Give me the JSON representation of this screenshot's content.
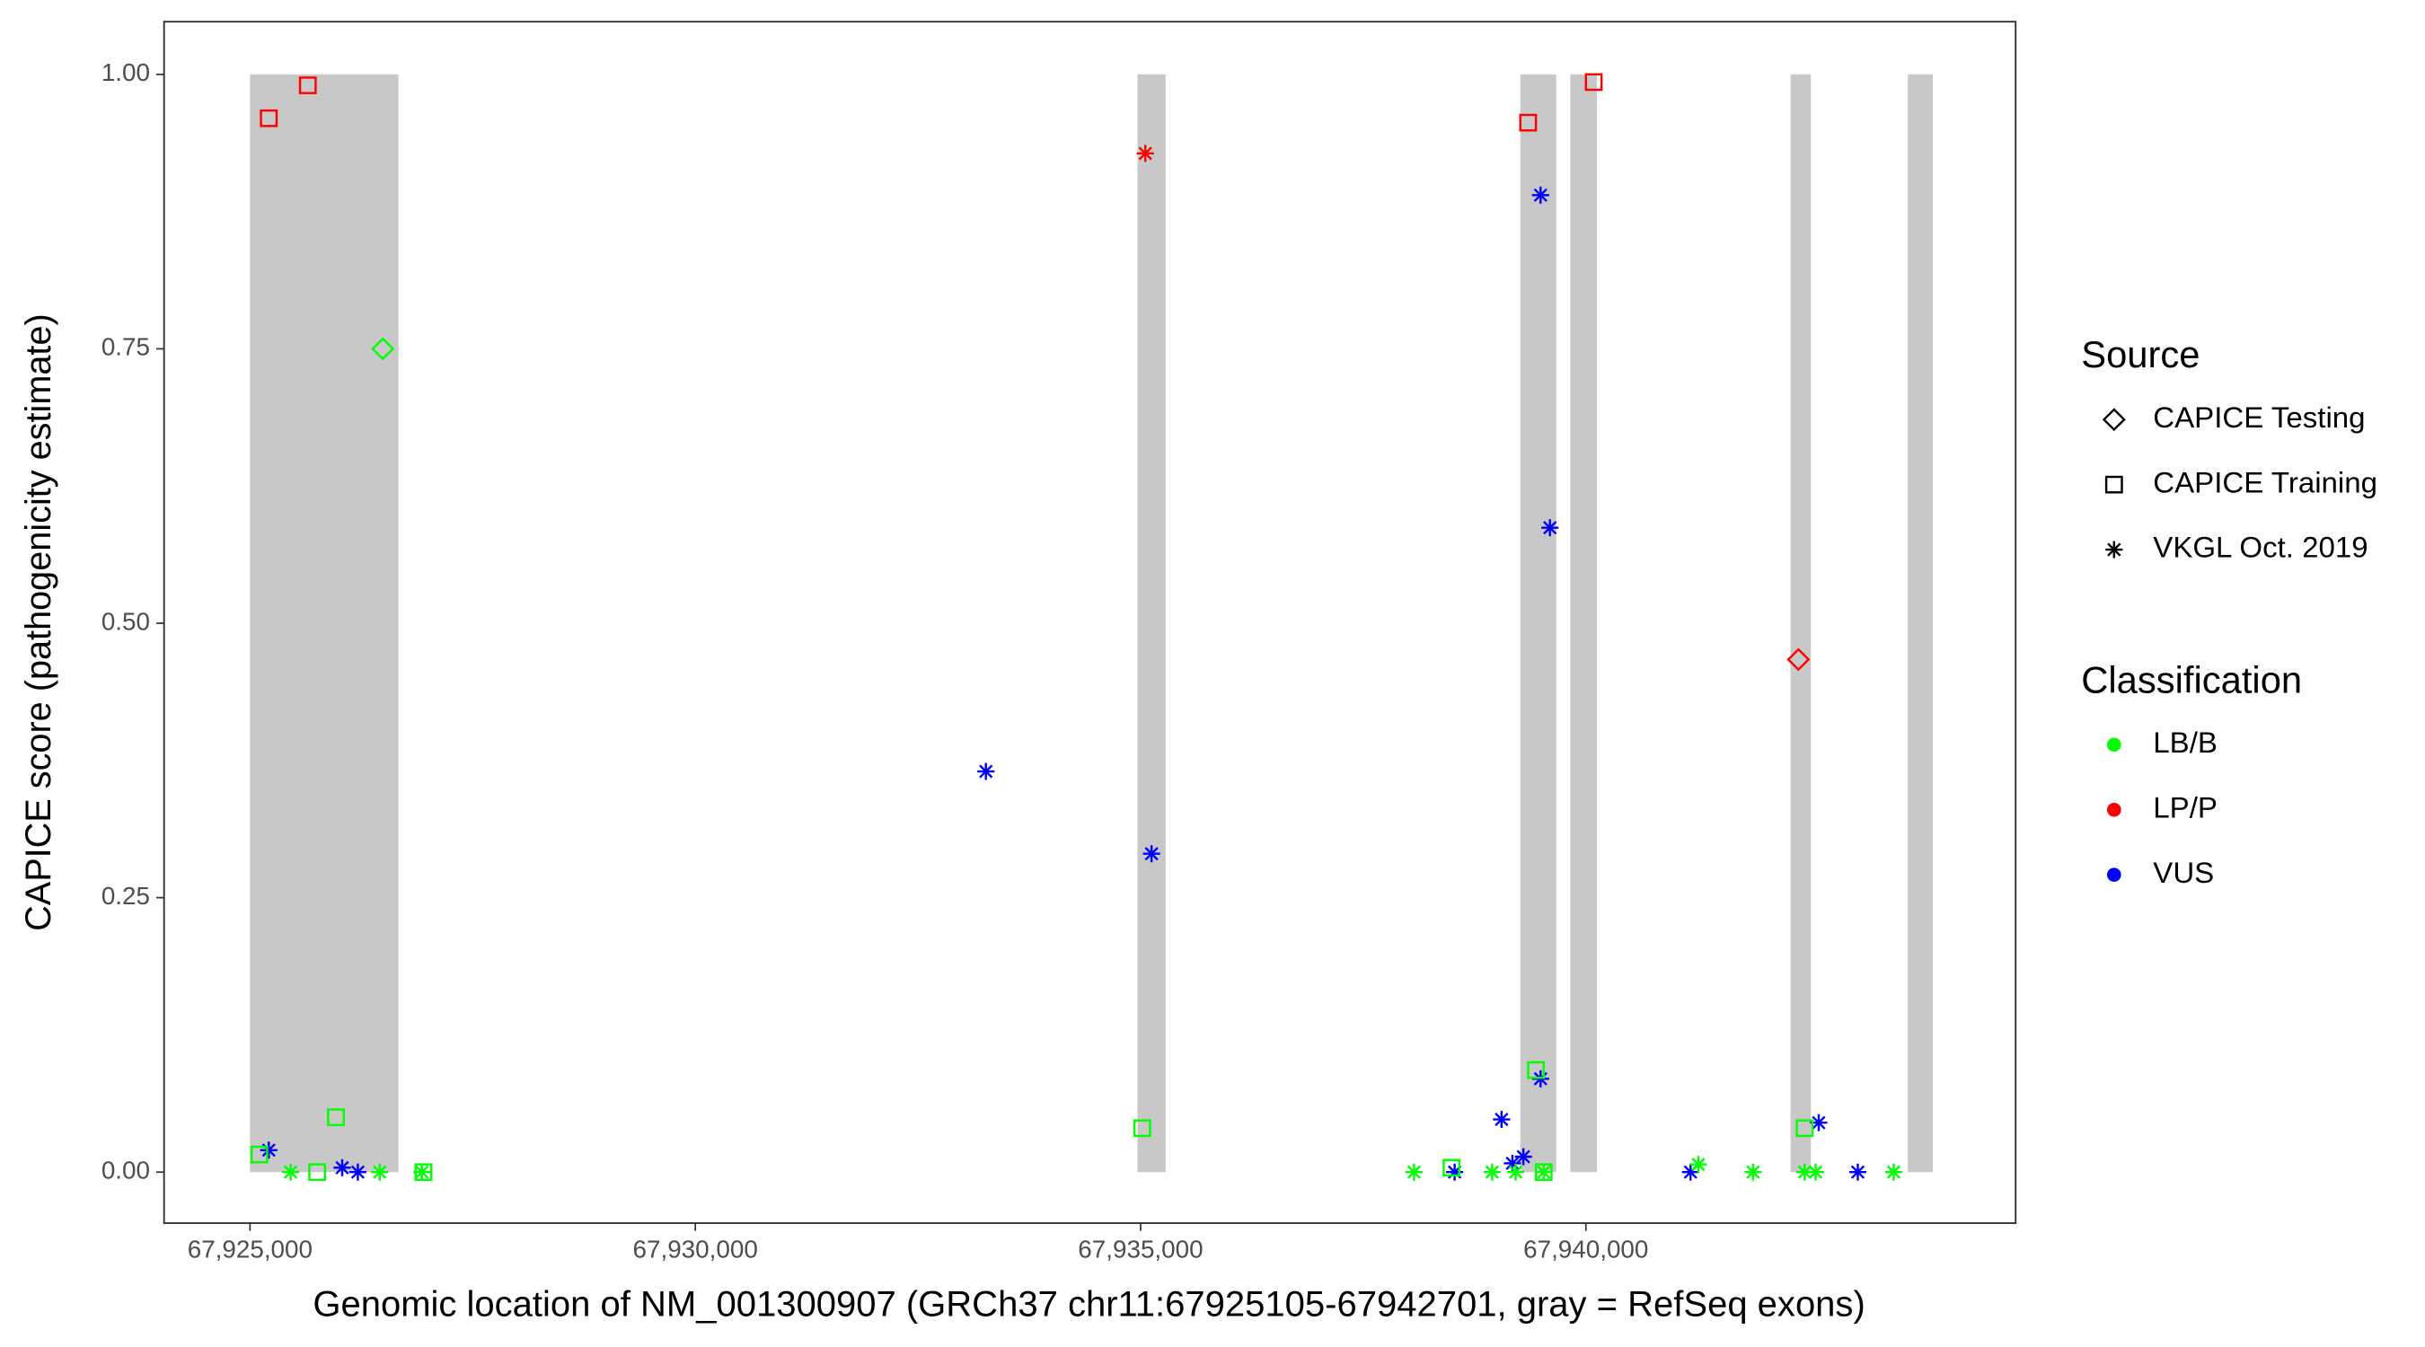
{
  "chart_data": {
    "type": "scatter",
    "x_label": "Genomic location of NM_001300907 (GRCh37 chr11:67925105-67942701, gray = RefSeq exons)",
    "y_label": "CAPICE score (pathogenicity estimate)",
    "xlim": [
      67924035,
      67944825
    ],
    "ylim": [
      -0.0465,
      1.048
    ],
    "xticks": [
      {
        "value": 67925000,
        "label": "67,925,000"
      },
      {
        "value": 67930000,
        "label": "67,930,000"
      },
      {
        "value": 67935000,
        "label": "67,935,000"
      },
      {
        "value": 67940000,
        "label": "67,940,000"
      }
    ],
    "yticks": [
      {
        "value": 0,
        "label": "0.00"
      },
      {
        "value": 0.25,
        "label": "0.25"
      },
      {
        "value": 0.5,
        "label": "0.50"
      },
      {
        "value": 0.75,
        "label": "0.75"
      },
      {
        "value": 1,
        "label": "1.00"
      }
    ],
    "exon_color": "#c8c8c8",
    "exons": [
      [
        67925000,
        67926667
      ],
      [
        67934965,
        67935281
      ],
      [
        67939263,
        67939667
      ],
      [
        67939825,
        67940123
      ],
      [
        67942298,
        67942526
      ],
      [
        67943614,
        67943895
      ]
    ],
    "source_legend": {
      "title": "Source",
      "items": [
        "CAPICE Testing",
        "CAPICE Training",
        "VKGL Oct. 2019"
      ],
      "shapes": [
        "diamond",
        "square",
        "asterisk"
      ]
    },
    "classification_legend": {
      "title": "Classification",
      "items": [
        "LB/B",
        "LP/P",
        "VUS"
      ],
      "colors": [
        "#00ff00",
        "#ff0000",
        "#0000ff"
      ]
    },
    "x": [
      67925211,
      67925649,
      67939351,
      67940088,
      67926491,
      67942386,
      67935053,
      67925211,
      67926035,
      67926211,
      67933263,
      67935123,
      67939491,
      67939596,
      67939491,
      67939053,
      67939298,
      67939175,
      67938526,
      67941175,
      67942614,
      67943053,
      67925456,
      67926456,
      67926930,
      67938070,
      67938947,
      67939211,
      67939526,
      67941263,
      67941877,
      67942456,
      67942579,
      67943456,
      67925105,
      67925754,
      67925965,
      67926947,
      67935018,
      67938491,
      67939439,
      67939526,
      67942456
    ],
    "values": [
      0.96,
      0.99,
      0.956,
      0.993,
      0.75,
      0.467,
      0.928,
      0.02,
      0.004,
      0,
      0.365,
      0.29,
      0.89,
      0.587,
      0.085,
      0.048,
      0.014,
      0.008,
      0,
      0,
      0.045,
      0,
      0,
      0,
      0,
      0,
      0,
      0,
      0,
      0.007,
      0,
      0,
      0,
      0,
      0.016,
      0,
      0.05,
      0,
      0.04,
      0.004,
      0.093,
      0,
      0.04
    ],
    "source": [
      "CAPICE Training",
      "CAPICE Training",
      "CAPICE Training",
      "CAPICE Training",
      "CAPICE Testing",
      "CAPICE Testing",
      "VKGL Oct. 2019",
      "VKGL Oct. 2019",
      "VKGL Oct. 2019",
      "VKGL Oct. 2019",
      "VKGL Oct. 2019",
      "VKGL Oct. 2019",
      "VKGL Oct. 2019",
      "VKGL Oct. 2019",
      "VKGL Oct. 2019",
      "VKGL Oct. 2019",
      "VKGL Oct. 2019",
      "VKGL Oct. 2019",
      "VKGL Oct. 2019",
      "VKGL Oct. 2019",
      "VKGL Oct. 2019",
      "VKGL Oct. 2019",
      "VKGL Oct. 2019",
      "VKGL Oct. 2019",
      "VKGL Oct. 2019",
      "VKGL Oct. 2019",
      "VKGL Oct. 2019",
      "VKGL Oct. 2019",
      "VKGL Oct. 2019",
      "VKGL Oct. 2019",
      "VKGL Oct. 2019",
      "VKGL Oct. 2019",
      "VKGL Oct. 2019",
      "VKGL Oct. 2019",
      "CAPICE Training",
      "CAPICE Training",
      "CAPICE Training",
      "CAPICE Training",
      "CAPICE Training",
      "CAPICE Training",
      "CAPICE Training",
      "CAPICE Training",
      "CAPICE Training"
    ],
    "classification": [
      "LP/P",
      "LP/P",
      "LP/P",
      "LP/P",
      "LB/B",
      "LP/P",
      "LP/P",
      "VUS",
      "VUS",
      "VUS",
      "VUS",
      "VUS",
      "VUS",
      "VUS",
      "VUS",
      "VUS",
      "VUS",
      "VUS",
      "VUS",
      "VUS",
      "VUS",
      "VUS",
      "LB/B",
      "LB/B",
      "LB/B",
      "LB/B",
      "LB/B",
      "LB/B",
      "LB/B",
      "LB/B",
      "LB/B",
      "LB/B",
      "LB/B",
      "LB/B",
      "LB/B",
      "LB/B",
      "LB/B",
      "LB/B",
      "LB/B",
      "LB/B",
      "LB/B",
      "LB/B",
      "LB/B"
    ]
  }
}
